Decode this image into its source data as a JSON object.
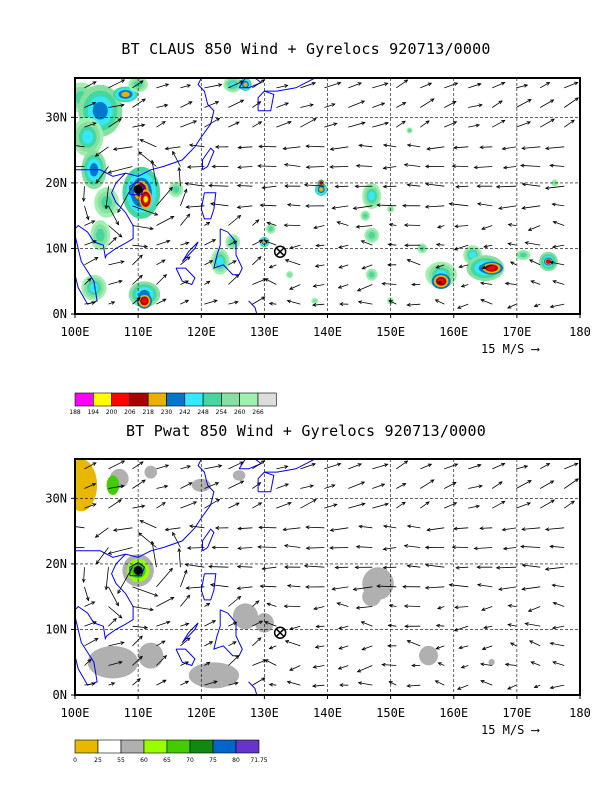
{
  "panels": [
    {
      "title": "BT CLAUS 850 Wind + Gyrelocs 920713/0000",
      "legend_values": [
        "188",
        "194",
        "200",
        "206",
        "218",
        "230",
        "242",
        "248",
        "254",
        "260",
        "266"
      ],
      "legend_colors": [
        "#ff00ff",
        "#ffff00",
        "#ff0000",
        "#aa0000",
        "#e8b000",
        "#0077cc",
        "#33e8ff",
        "#44d8a0",
        "#88e0a0",
        "#a0f0b0",
        "#dddddd"
      ],
      "scale_label": "15 M/S"
    },
    {
      "title": "BT Pwat 850 Wind + Gyrelocs 920713/0000",
      "legend_values": [
        "0",
        "25",
        "55",
        "60",
        "65",
        "70",
        "75",
        "80",
        "71.75"
      ],
      "legend_colors": [
        "#e8b800",
        "#ffffff",
        "#b0b0b0",
        "#99ff00",
        "#44cc00",
        "#118811",
        "#0066cc",
        "#6633cc"
      ],
      "scale_label": "15 M/S"
    }
  ],
  "axes": {
    "x_ticks": [
      "100E",
      "110E",
      "120E",
      "130E",
      "140E",
      "150E",
      "160E",
      "170E",
      "180"
    ],
    "y_ticks": [
      "0N",
      "10N",
      "20N",
      "30N"
    ],
    "x_range_deg": [
      100,
      180
    ],
    "y_range_deg": [
      0,
      36
    ]
  },
  "gyre_location": {
    "lon": 132.5,
    "lat": 9.5
  },
  "typhoon_center": {
    "lon": 110,
    "lat": 19
  }
}
